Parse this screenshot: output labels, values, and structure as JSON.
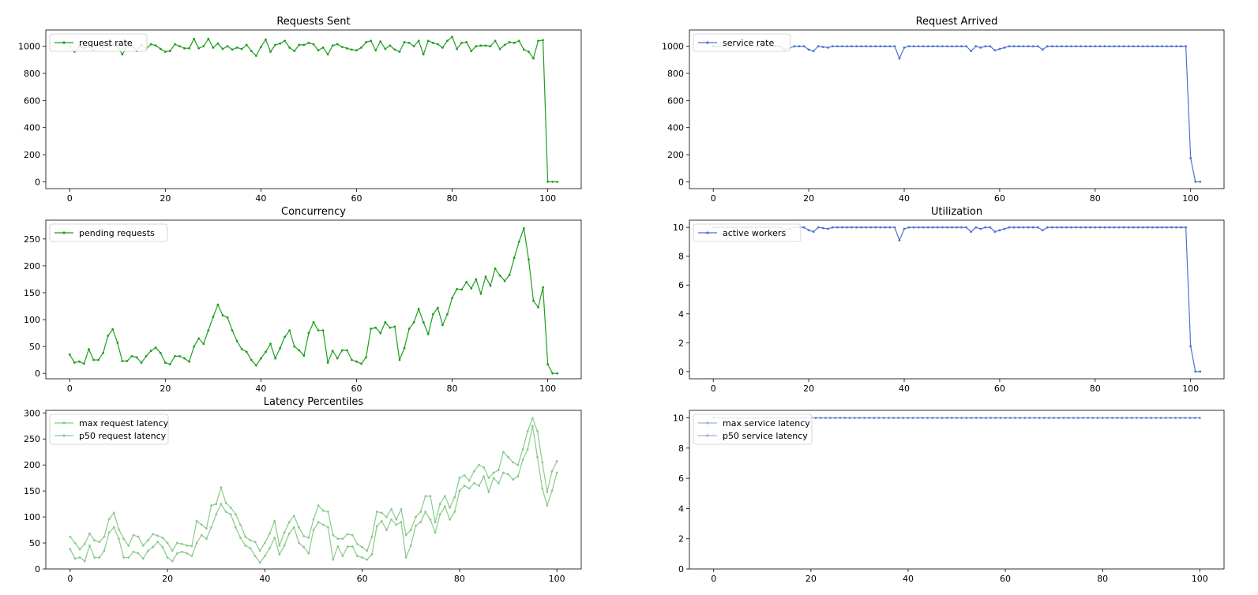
{
  "chart_data": [
    {
      "type": "line",
      "title": "Requests Sent",
      "xlim": [
        -5,
        107
      ],
      "ylim": [
        -50,
        1120
      ],
      "xticks": [
        0,
        20,
        40,
        60,
        80,
        100
      ],
      "yticks": [
        0,
        200,
        400,
        600,
        800,
        1000
      ],
      "legend": "top-left",
      "color": "#2ca02c",
      "series": [
        {
          "name": "request rate",
          "color": "#1f9e1f",
          "alpha": 1.0,
          "y": [
            1000,
            960,
            1000,
            985,
            1000,
            970,
            1010,
            990,
            1000,
            1010,
            1000,
            940,
            995,
            1010,
            965,
            1010,
            980,
            1015,
            1005,
            980,
            960,
            965,
            1015,
            1000,
            985,
            985,
            1055,
            985,
            1000,
            1055,
            990,
            1020,
            980,
            1000,
            975,
            990,
            980,
            1010,
            965,
            930,
            995,
            1050,
            960,
            1010,
            1020,
            1040,
            990,
            965,
            1010,
            1010,
            1025,
            1015,
            970,
            990,
            940,
            1005,
            1015,
            995,
            985,
            975,
            970,
            990,
            1030,
            1040,
            970,
            1035,
            980,
            1005,
            975,
            960,
            1030,
            1025,
            1000,
            1040,
            940,
            1040,
            1025,
            1015,
            990,
            1040,
            1070,
            980,
            1025,
            1030,
            965,
            1000,
            1005,
            1005,
            1000,
            1040,
            980,
            1010,
            1030,
            1025,
            1040,
            975,
            960,
            910,
            1040,
            1045,
            0,
            0,
            0
          ]
        }
      ]
    },
    {
      "type": "line",
      "title": "Request Arrived",
      "xlim": [
        -5,
        107
      ],
      "ylim": [
        -50,
        1120
      ],
      "xticks": [
        0,
        20,
        40,
        60,
        80,
        100
      ],
      "yticks": [
        0,
        200,
        400,
        600,
        800,
        1000
      ],
      "legend": "top-left",
      "color": "#4c72d0",
      "series": [
        {
          "name": "service rate",
          "color": "#4c72d0",
          "alpha": 1.0,
          "y": [
            1000,
            1000,
            1000,
            1000,
            1000,
            1000,
            1000,
            1000,
            1000,
            1000,
            1000,
            1000,
            1000,
            1000,
            1000,
            975,
            985,
            1000,
            1000,
            1000,
            975,
            965,
            1000,
            995,
            990,
            1000,
            1000,
            1000,
            1000,
            1000,
            1000,
            1000,
            1000,
            1000,
            1000,
            1000,
            1000,
            1000,
            1000,
            910,
            990,
            1000,
            1000,
            1000,
            1000,
            1000,
            1000,
            1000,
            1000,
            1000,
            1000,
            1000,
            1000,
            1000,
            965,
            1000,
            990,
            1000,
            1000,
            970,
            980,
            990,
            1000,
            1000,
            1000,
            1000,
            1000,
            1000,
            1000,
            975,
            1000,
            1000,
            1000,
            1000,
            1000,
            1000,
            1000,
            1000,
            1000,
            1000,
            1000,
            1000,
            1000,
            1000,
            1000,
            1000,
            1000,
            1000,
            1000,
            1000,
            1000,
            1000,
            1000,
            1000,
            1000,
            1000,
            1000,
            1000,
            1000,
            1000,
            175,
            0,
            0
          ]
        }
      ]
    },
    {
      "type": "line",
      "title": "Concurrency",
      "xlim": [
        -5,
        107
      ],
      "ylim": [
        -10,
        285
      ],
      "xticks": [
        0,
        20,
        40,
        60,
        80,
        100
      ],
      "yticks": [
        0,
        50,
        100,
        150,
        200,
        250
      ],
      "legend": "top-left",
      "color": "#2ca02c",
      "series": [
        {
          "name": "pending requests",
          "color": "#1f9e1f",
          "alpha": 1.0,
          "y": [
            35,
            20,
            22,
            18,
            45,
            25,
            25,
            38,
            70,
            82,
            57,
            23,
            23,
            32,
            30,
            20,
            32,
            42,
            48,
            38,
            20,
            17,
            32,
            32,
            28,
            22,
            50,
            65,
            55,
            80,
            105,
            128,
            108,
            104,
            80,
            60,
            45,
            40,
            25,
            15,
            28,
            40,
            55,
            28,
            47,
            68,
            80,
            50,
            43,
            33,
            75,
            95,
            80,
            80,
            20,
            42,
            28,
            43,
            43,
            25,
            22,
            18,
            30,
            83,
            85,
            75,
            95,
            85,
            87,
            25,
            47,
            83,
            95,
            120,
            95,
            73,
            110,
            122,
            90,
            110,
            140,
            157,
            156,
            170,
            158,
            175,
            148,
            180,
            163,
            195,
            182,
            172,
            183,
            215,
            245,
            270,
            212,
            135,
            123,
            160,
            17,
            0,
            0
          ]
        }
      ]
    },
    {
      "type": "line",
      "title": "Utilization",
      "xlim": [
        -5,
        107
      ],
      "ylim": [
        -0.5,
        10.5
      ],
      "xticks": [
        0,
        20,
        40,
        60,
        80,
        100
      ],
      "yticks": [
        0,
        2,
        4,
        6,
        8,
        10
      ],
      "legend": "top-left",
      "color": "#4c72d0",
      "series": [
        {
          "name": "active workers",
          "color": "#4c72d0",
          "alpha": 1.0,
          "y": [
            10,
            10,
            10,
            10,
            10,
            10,
            10,
            10,
            10,
            10,
            10,
            10,
            10,
            10,
            10,
            9.8,
            9.9,
            10,
            10,
            10,
            9.8,
            9.7,
            10,
            9.95,
            9.9,
            10,
            10,
            10,
            10,
            10,
            10,
            10,
            10,
            10,
            10,
            10,
            10,
            10,
            10,
            9.1,
            9.9,
            10,
            10,
            10,
            10,
            10,
            10,
            10,
            10,
            10,
            10,
            10,
            10,
            10,
            9.7,
            10,
            9.9,
            10,
            10,
            9.7,
            9.8,
            9.9,
            10,
            10,
            10,
            10,
            10,
            10,
            10,
            9.8,
            10,
            10,
            10,
            10,
            10,
            10,
            10,
            10,
            10,
            10,
            10,
            10,
            10,
            10,
            10,
            10,
            10,
            10,
            10,
            10,
            10,
            10,
            10,
            10,
            10,
            10,
            10,
            10,
            10,
            10,
            1.75,
            0,
            0
          ]
        }
      ]
    },
    {
      "type": "line",
      "title": "Latency Percentiles",
      "xlim": [
        -5,
        105
      ],
      "ylim": [
        0,
        305
      ],
      "xticks": [
        0,
        20,
        40,
        60,
        80,
        100
      ],
      "yticks": [
        0,
        50,
        100,
        150,
        200,
        250,
        300
      ],
      "legend": "top-left",
      "color": "#2ca02c",
      "series": [
        {
          "name": "max request latency",
          "color": "#2ca02c",
          "alpha": 0.55,
          "y": [
            62,
            50,
            38,
            48,
            68,
            55,
            52,
            62,
            96,
            108,
            76,
            58,
            45,
            65,
            62,
            45,
            55,
            67,
            64,
            60,
            50,
            35,
            50,
            48,
            45,
            44,
            92,
            85,
            78,
            122,
            125,
            157,
            127,
            118,
            105,
            85,
            62,
            55,
            52,
            35,
            50,
            68,
            92,
            45,
            70,
            90,
            102,
            80,
            63,
            60,
            95,
            122,
            112,
            110,
            65,
            58,
            58,
            67,
            65,
            48,
            42,
            35,
            62,
            110,
            108,
            100,
            115,
            95,
            115,
            65,
            75,
            100,
            110,
            140,
            140,
            90,
            125,
            140,
            118,
            138,
            175,
            180,
            170,
            188,
            200,
            195,
            175,
            185,
            190,
            225,
            215,
            205,
            200,
            230,
            265,
            290,
            265,
            205,
            148,
            188,
            207
          ]
        },
        {
          "name": "p50 request latency",
          "color": "#2ca02c",
          "alpha": 0.55,
          "y": [
            38,
            20,
            22,
            15,
            45,
            22,
            22,
            35,
            70,
            80,
            58,
            22,
            22,
            33,
            30,
            20,
            35,
            42,
            52,
            42,
            22,
            15,
            30,
            33,
            30,
            25,
            50,
            65,
            58,
            80,
            105,
            125,
            110,
            105,
            80,
            60,
            45,
            40,
            25,
            12,
            25,
            40,
            60,
            28,
            45,
            68,
            80,
            50,
            42,
            30,
            75,
            90,
            85,
            80,
            18,
            43,
            25,
            43,
            43,
            25,
            22,
            18,
            28,
            82,
            92,
            75,
            95,
            85,
            90,
            22,
            45,
            83,
            90,
            110,
            95,
            70,
            105,
            120,
            95,
            110,
            150,
            160,
            155,
            165,
            160,
            178,
            148,
            175,
            165,
            185,
            182,
            172,
            178,
            210,
            230,
            275,
            215,
            155,
            122,
            150,
            185
          ]
        }
      ]
    },
    {
      "type": "line",
      "title": "",
      "xlim": [
        -5,
        105
      ],
      "ylim": [
        0,
        10.5
      ],
      "xticks": [
        0,
        20,
        40,
        60,
        80,
        100
      ],
      "yticks": [
        0,
        2,
        4,
        6,
        8,
        10
      ],
      "legend": "top-left",
      "color": "#4c72d0",
      "series": [
        {
          "name": "max service latency",
          "color": "#4c72d0",
          "alpha": 0.55,
          "y": [
            10,
            10,
            10,
            10,
            10,
            10,
            10,
            10,
            10,
            10,
            10,
            10,
            10,
            10,
            10,
            10,
            10,
            10,
            10,
            10,
            10,
            10,
            10,
            10,
            10,
            10,
            10,
            10,
            10,
            10,
            10,
            10,
            10,
            10,
            10,
            10,
            10,
            10,
            10,
            10,
            10,
            10,
            10,
            10,
            10,
            10,
            10,
            10,
            10,
            10,
            10,
            10,
            10,
            10,
            10,
            10,
            10,
            10,
            10,
            10,
            10,
            10,
            10,
            10,
            10,
            10,
            10,
            10,
            10,
            10,
            10,
            10,
            10,
            10,
            10,
            10,
            10,
            10,
            10,
            10,
            10,
            10,
            10,
            10,
            10,
            10,
            10,
            10,
            10,
            10,
            10,
            10,
            10,
            10,
            10,
            10,
            10,
            10,
            10,
            10,
            10
          ]
        },
        {
          "name": "p50 service latency",
          "color": "#4c72d0",
          "alpha": 0.55,
          "y": [
            10,
            10,
            10,
            10,
            10,
            10,
            10,
            10,
            10,
            10,
            10,
            10,
            10,
            10,
            10,
            10,
            10,
            10,
            10,
            10,
            10,
            10,
            10,
            10,
            10,
            10,
            10,
            10,
            10,
            10,
            10,
            10,
            10,
            10,
            10,
            10,
            10,
            10,
            10,
            10,
            10,
            10,
            10,
            10,
            10,
            10,
            10,
            10,
            10,
            10,
            10,
            10,
            10,
            10,
            10,
            10,
            10,
            10,
            10,
            10,
            10,
            10,
            10,
            10,
            10,
            10,
            10,
            10,
            10,
            10,
            10,
            10,
            10,
            10,
            10,
            10,
            10,
            10,
            10,
            10,
            10,
            10,
            10,
            10,
            10,
            10,
            10,
            10,
            10,
            10,
            10,
            10,
            10,
            10,
            10,
            10,
            10,
            10,
            10,
            10,
            10
          ]
        }
      ]
    }
  ]
}
